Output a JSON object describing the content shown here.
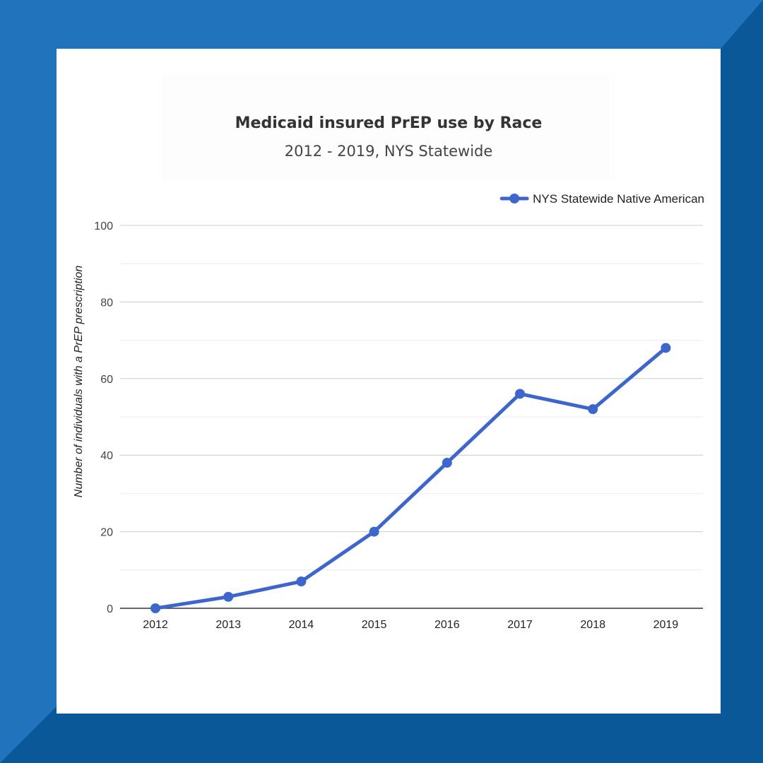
{
  "colors": {
    "frame_light": "#1f74bb",
    "frame_dark": "#0a5898",
    "card_bg": "#ffffff",
    "series_line": "#3d66cc",
    "grid_major": "#cccccc",
    "grid_minor": "#ebebeb",
    "axis_line": "#333333"
  },
  "chart_data": {
    "type": "line",
    "title": "Medicaid insured PrEP use by Race",
    "subtitle": "2012 - 2019, NYS Statewide",
    "ylabel": "Number of individuals with a PrEP prescription",
    "xlabel": "",
    "ylim": [
      0,
      100
    ],
    "yticks": [
      0,
      20,
      40,
      60,
      80,
      100
    ],
    "grid": true,
    "legend_position": "top-right",
    "categories": [
      "2012",
      "2013",
      "2014",
      "2015",
      "2016",
      "2017",
      "2018",
      "2019"
    ],
    "series": [
      {
        "name": "NYS Statewide Native American",
        "values": [
          0,
          3,
          7,
          20,
          38,
          56,
          52,
          68
        ]
      }
    ]
  }
}
